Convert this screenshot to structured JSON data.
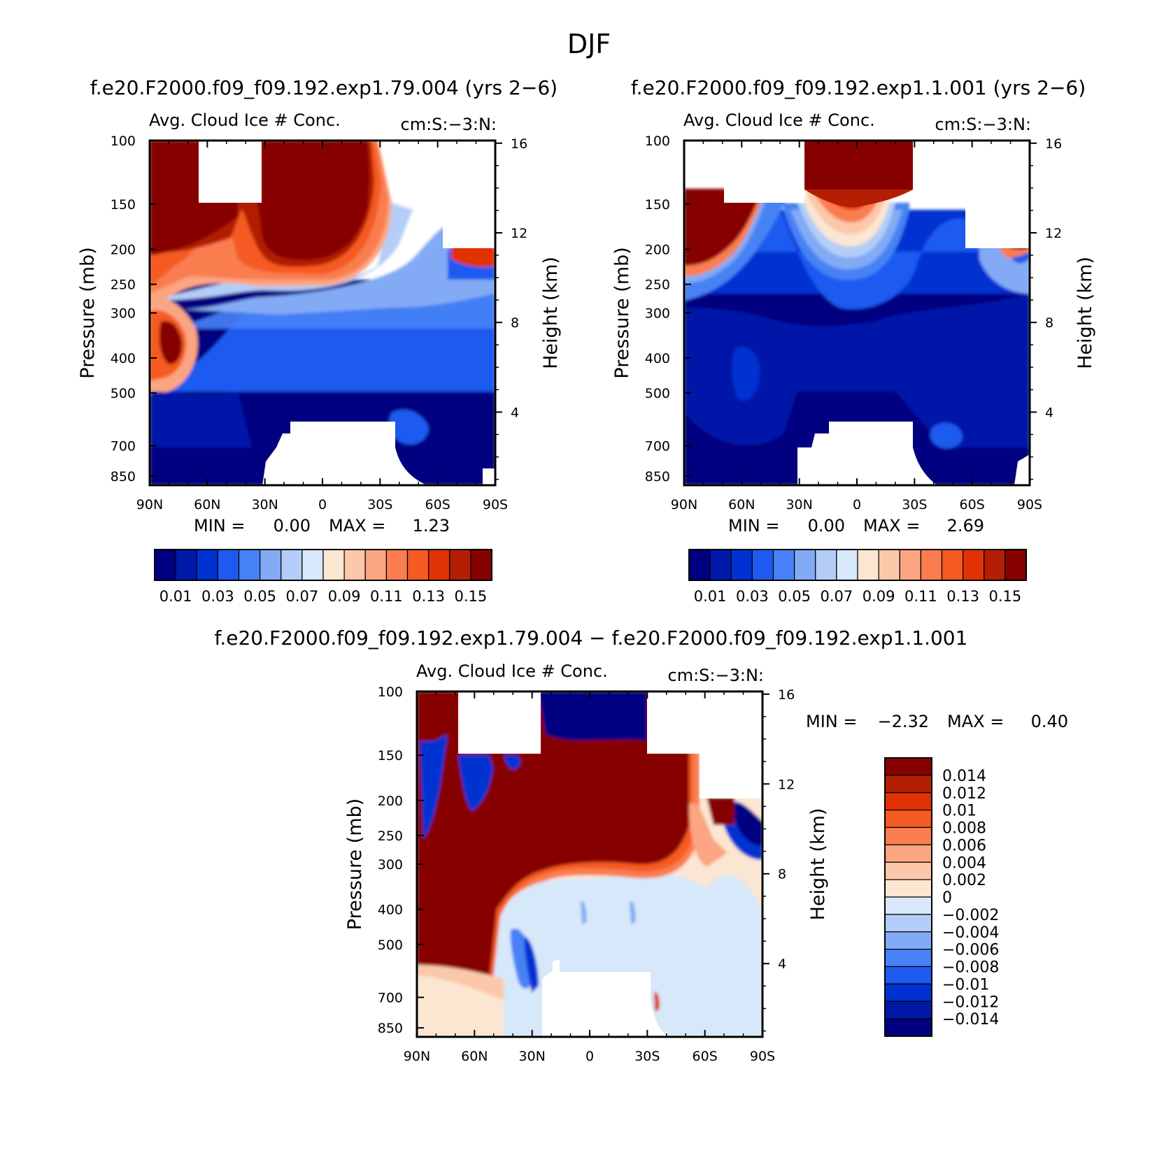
{
  "page_title": "DJF",
  "panels": [
    {
      "id": "exp79",
      "case_title": "f.e20.F2000.f09_f09.192.exp1.79.004 (yrs 2−6)",
      "left_title": "Avg. Cloud Ice # Conc.",
      "right_title": "cm:S:−3:N:",
      "min_label": "MIN =",
      "min_value": "0.00",
      "max_label": "MAX =",
      "max_value": "1.23"
    },
    {
      "id": "exp11",
      "case_title": "f.e20.F2000.f09_f09.192.exp1.1.001 (yrs 2−6)",
      "left_title": "Avg. Cloud Ice # Conc.",
      "right_title": "cm:S:−3:N:",
      "min_label": "MIN =",
      "min_value": "0.00",
      "max_label": "MAX =",
      "max_value": "2.69"
    },
    {
      "id": "diff",
      "case_title": "f.e20.F2000.f09_f09.192.exp1.79.004 − f.e20.F2000.f09_f09.192.exp1.1.001",
      "left_title": "Avg. Cloud Ice # Conc.",
      "right_title": "cm:S:−3:N:",
      "min_label": "MIN =",
      "min_value": "−2.32",
      "max_label": "MAX =",
      "max_value": "0.40"
    }
  ],
  "axes": {
    "ylabel_left": "Pressure (mb)",
    "ylabel_right": "Height (km)",
    "pressure_ticks": [
      "100",
      "150",
      "200",
      "250",
      "300",
      "400",
      "500",
      "700",
      "850"
    ],
    "height_ticks": [
      "16",
      "12",
      "8",
      "4"
    ],
    "lat_ticks": [
      "90N",
      "60N",
      "30N",
      "0",
      "30S",
      "60S",
      "90S"
    ]
  },
  "colorbars": {
    "abs_labels": [
      "0.01",
      "0.03",
      "0.05",
      "0.07",
      "0.09",
      "0.11",
      "0.13",
      "0.15"
    ],
    "abs_colors": [
      "#000080",
      "#0019a8",
      "#0032d2",
      "#1e5af0",
      "#4682f5",
      "#82aaf5",
      "#b4cdf8",
      "#d7e8fa",
      "#fbe6d2",
      "#fcc8aa",
      "#fba582",
      "#fa7d50",
      "#f55a23",
      "#e13205",
      "#b41e05",
      "#870000"
    ],
    "diff_labels": [
      "0.014",
      "0.012",
      "0.01",
      "0.008",
      "0.006",
      "0.004",
      "0.002",
      "0",
      "−0.002",
      "−0.004",
      "−0.006",
      "−0.008",
      "−0.01",
      "−0.012",
      "−0.014"
    ],
    "diff_colors": [
      "#870000",
      "#b41e05",
      "#e13205",
      "#f55a23",
      "#fa7d50",
      "#fba582",
      "#fcc8aa",
      "#fbe6d2",
      "#d7e8fa",
      "#b4cdf8",
      "#82aaf5",
      "#4682f5",
      "#1e5af0",
      "#0032d2",
      "#0019a8",
      "#000080"
    ]
  },
  "chart_data": [
    {
      "type": "heatmap",
      "title": "Avg. Cloud Ice # Conc.",
      "subtitle": "f.e20.F2000.f09_f09.192.exp1.79.004 (yrs 2−6)",
      "xlabel": "",
      "ylabel": "Pressure (mb)",
      "y2label": "Height (km)",
      "x_ticks": [
        "90N",
        "60N",
        "30N",
        "0",
        "30S",
        "60S",
        "90S"
      ],
      "xlim": [
        90,
        -90
      ],
      "ylim": [
        900,
        100
      ],
      "y_scale": "log",
      "min": 0.0,
      "max": 1.23,
      "contour_levels": [
        0.01,
        0.02,
        0.03,
        0.04,
        0.05,
        0.06,
        0.07,
        0.08,
        0.09,
        0.1,
        0.11,
        0.12,
        0.13,
        0.14,
        0.15
      ]
    },
    {
      "type": "heatmap",
      "title": "Avg. Cloud Ice # Conc.",
      "subtitle": "f.e20.F2000.f09_f09.192.exp1.1.001 (yrs 2−6)",
      "xlabel": "",
      "ylabel": "Pressure (mb)",
      "y2label": "Height (km)",
      "x_ticks": [
        "90N",
        "60N",
        "30N",
        "0",
        "30S",
        "60S",
        "90S"
      ],
      "xlim": [
        90,
        -90
      ],
      "ylim": [
        900,
        100
      ],
      "y_scale": "log",
      "min": 0.0,
      "max": 2.69,
      "contour_levels": [
        0.01,
        0.02,
        0.03,
        0.04,
        0.05,
        0.06,
        0.07,
        0.08,
        0.09,
        0.1,
        0.11,
        0.12,
        0.13,
        0.14,
        0.15
      ]
    },
    {
      "type": "heatmap",
      "title": "Avg. Cloud Ice # Conc.",
      "subtitle": "f.e20.F2000.f09_f09.192.exp1.79.004 − f.e20.F2000.f09_f09.192.exp1.1.001",
      "xlabel": "",
      "ylabel": "Pressure (mb)",
      "y2label": "Height (km)",
      "x_ticks": [
        "90N",
        "60N",
        "30N",
        "0",
        "30S",
        "60S",
        "90S"
      ],
      "xlim": [
        90,
        -90
      ],
      "ylim": [
        900,
        100
      ],
      "y_scale": "log",
      "min": -2.32,
      "max": 0.4,
      "contour_levels": [
        -0.014,
        -0.012,
        -0.01,
        -0.008,
        -0.006,
        -0.004,
        -0.002,
        0,
        0.002,
        0.004,
        0.006,
        0.008,
        0.01,
        0.012,
        0.014
      ]
    }
  ]
}
